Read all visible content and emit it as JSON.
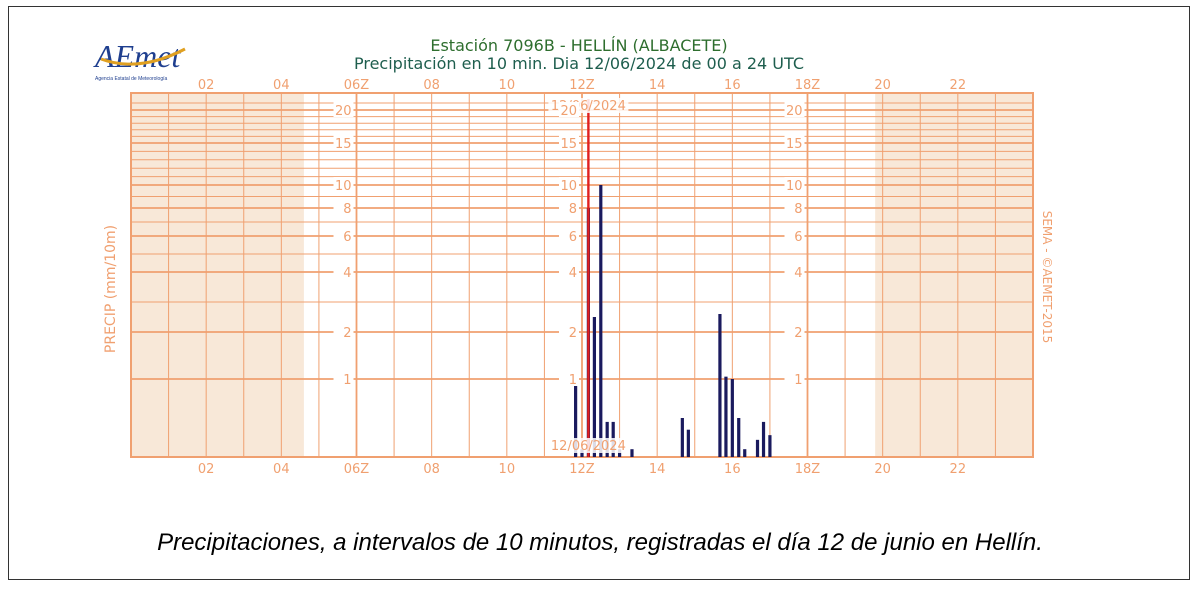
{
  "logo": {
    "text": "AEmet",
    "subtitle": "Agencia Estatal de Meteorología"
  },
  "chart_data": {
    "type": "bar",
    "title": "Estación 7096B - HELLÍN (ALBACETE)",
    "subtitle": "Precipitación en 10 min. Dia 12/06/2024 de 00 a 24 UTC",
    "ylabel": "PRECIP (mm/10m)",
    "right_label": "SEMA - ©AEMET-2015",
    "x_unit": "hour UTC",
    "xlim": [
      0,
      24
    ],
    "ylim": [
      0,
      21
    ],
    "y_scale": "nonlinear",
    "x_ticks": [
      {
        "hour": 2,
        "label": "02"
      },
      {
        "hour": 4,
        "label": "04"
      },
      {
        "hour": 6,
        "label": "06Z"
      },
      {
        "hour": 8,
        "label": "08"
      },
      {
        "hour": 10,
        "label": "10"
      },
      {
        "hour": 12,
        "label": "12Z"
      },
      {
        "hour": 14,
        "label": "14"
      },
      {
        "hour": 16,
        "label": "16"
      },
      {
        "hour": 18,
        "label": "18Z"
      },
      {
        "hour": 20,
        "label": "20"
      },
      {
        "hour": 22,
        "label": "22"
      }
    ],
    "y_ticks": [
      1,
      2,
      4,
      6,
      8,
      10,
      15,
      20
    ],
    "y_tick_labels": [
      "1",
      "2",
      "4",
      "6",
      "8",
      "10",
      "15",
      "20"
    ],
    "night_shading": [
      [
        0,
        4.6
      ],
      [
        19.8,
        24
      ]
    ],
    "date_marker": {
      "hour": 12.17,
      "label": "12/06/2024"
    },
    "grid": true,
    "colors": {
      "grid": "#f0a070",
      "axis_text": "#f0a070",
      "bars": "#1a1a5e",
      "night": "#f8e8d8",
      "marker": "#e02020",
      "title": "#2e6e2e",
      "subtitle": "#1e5e4e"
    },
    "series": [
      {
        "hours": [
          11.83,
          12.0,
          12.17,
          12.33,
          12.5,
          12.67,
          12.83,
          13.0,
          13.33,
          14.67,
          14.83,
          15.67,
          15.83,
          16.0,
          16.17,
          16.33,
          16.67,
          16.83,
          17.0
        ],
        "values": [
          1.0,
          0.1,
          8.0,
          2.5,
          10.0,
          0.45,
          0.45,
          0.1,
          0.1,
          0.5,
          0.35,
          2.6,
          1.05,
          1.0,
          0.5,
          0.1,
          0.22,
          0.45,
          0.28
        ]
      }
    ]
  },
  "caption": "Precipitaciones, a intervalos de 10 minutos, registradas el día 12 de junio en Hellín."
}
